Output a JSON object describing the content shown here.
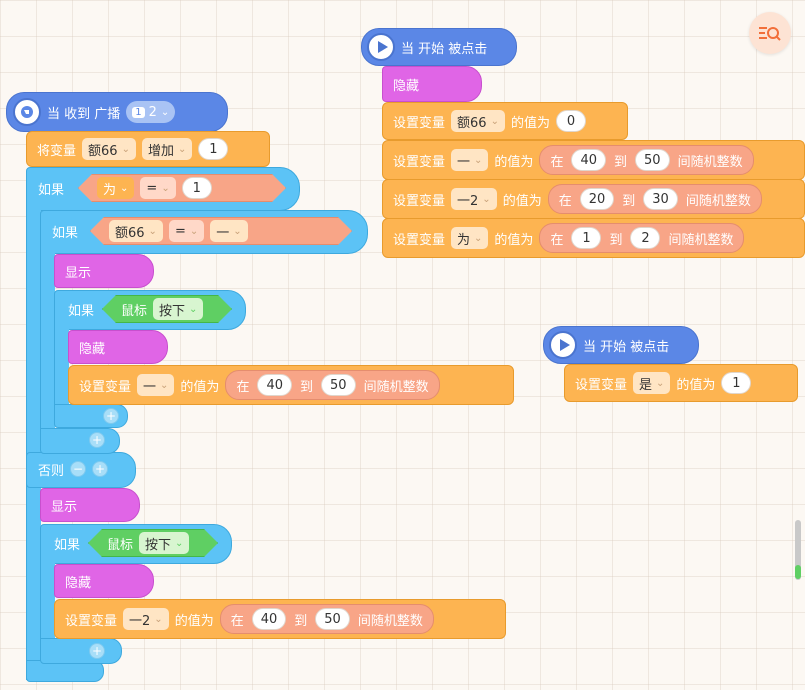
{
  "toolbar": {
    "zoom_icon": "equal-magnifier-icon"
  },
  "script_broadcast": {
    "hat_label": "当 收到 广播",
    "broadcast_badge": "1",
    "broadcast_value": "2",
    "change_var": {
      "prefix": "将变量",
      "var": "额66",
      "op": "增加",
      "value": "1"
    },
    "if1": {
      "label": "如果",
      "left": "为",
      "op": "=",
      "right": "1"
    },
    "if2": {
      "label": "如果",
      "left": "额66",
      "op": "=",
      "right": "一"
    },
    "show1": "显示",
    "if3": {
      "label": "如果",
      "sensor": "鼠标",
      "state": "按下"
    },
    "hide1": "隐藏",
    "set1": {
      "prefix": "设置变量",
      "var": "一",
      "mid": "的值为",
      "at": "在",
      "from": "40",
      "to_word": "到",
      "to": "50",
      "suffix": "间随机整数"
    },
    "else_label": "否则",
    "show2": "显示",
    "if4": {
      "label": "如果",
      "sensor": "鼠标",
      "state": "按下"
    },
    "hide2": "隐藏",
    "set2": {
      "prefix": "设置变量",
      "var": "一2",
      "mid": "的值为",
      "at": "在",
      "from": "40",
      "to_word": "到",
      "to": "50",
      "suffix": "间随机整数"
    }
  },
  "script_start1": {
    "hat_label": "当 开始 被点击",
    "hide": "隐藏",
    "set_a": {
      "prefix": "设置变量",
      "var": "额66",
      "mid": "的值为",
      "value": "0"
    },
    "set_b": {
      "prefix": "设置变量",
      "var": "一",
      "mid": "的值为",
      "at": "在",
      "from": "40",
      "to_word": "到",
      "to": "50",
      "suffix": "间随机整数"
    },
    "set_c": {
      "prefix": "设置变量",
      "var": "一2",
      "mid": "的值为",
      "at": "在",
      "from": "20",
      "to_word": "到",
      "to": "30",
      "suffix": "间随机整数"
    },
    "set_d": {
      "prefix": "设置变量",
      "var": "为",
      "mid": "的值为",
      "at": "在",
      "from": "1",
      "to_word": "到",
      "to": "2",
      "suffix": "间随机整数"
    }
  },
  "script_start2": {
    "hat_label": "当 开始 被点击",
    "set": {
      "prefix": "设置变量",
      "var": "是",
      "mid": "的值为",
      "value": "1"
    }
  },
  "colors": {
    "event": "#5b87e6",
    "control": "#5cc3f6",
    "variable": "#fdb451",
    "looks": "#e065e6",
    "operator": "#f8a587",
    "sensing": "#5fcf63",
    "canvas": "#fcf8f3"
  }
}
